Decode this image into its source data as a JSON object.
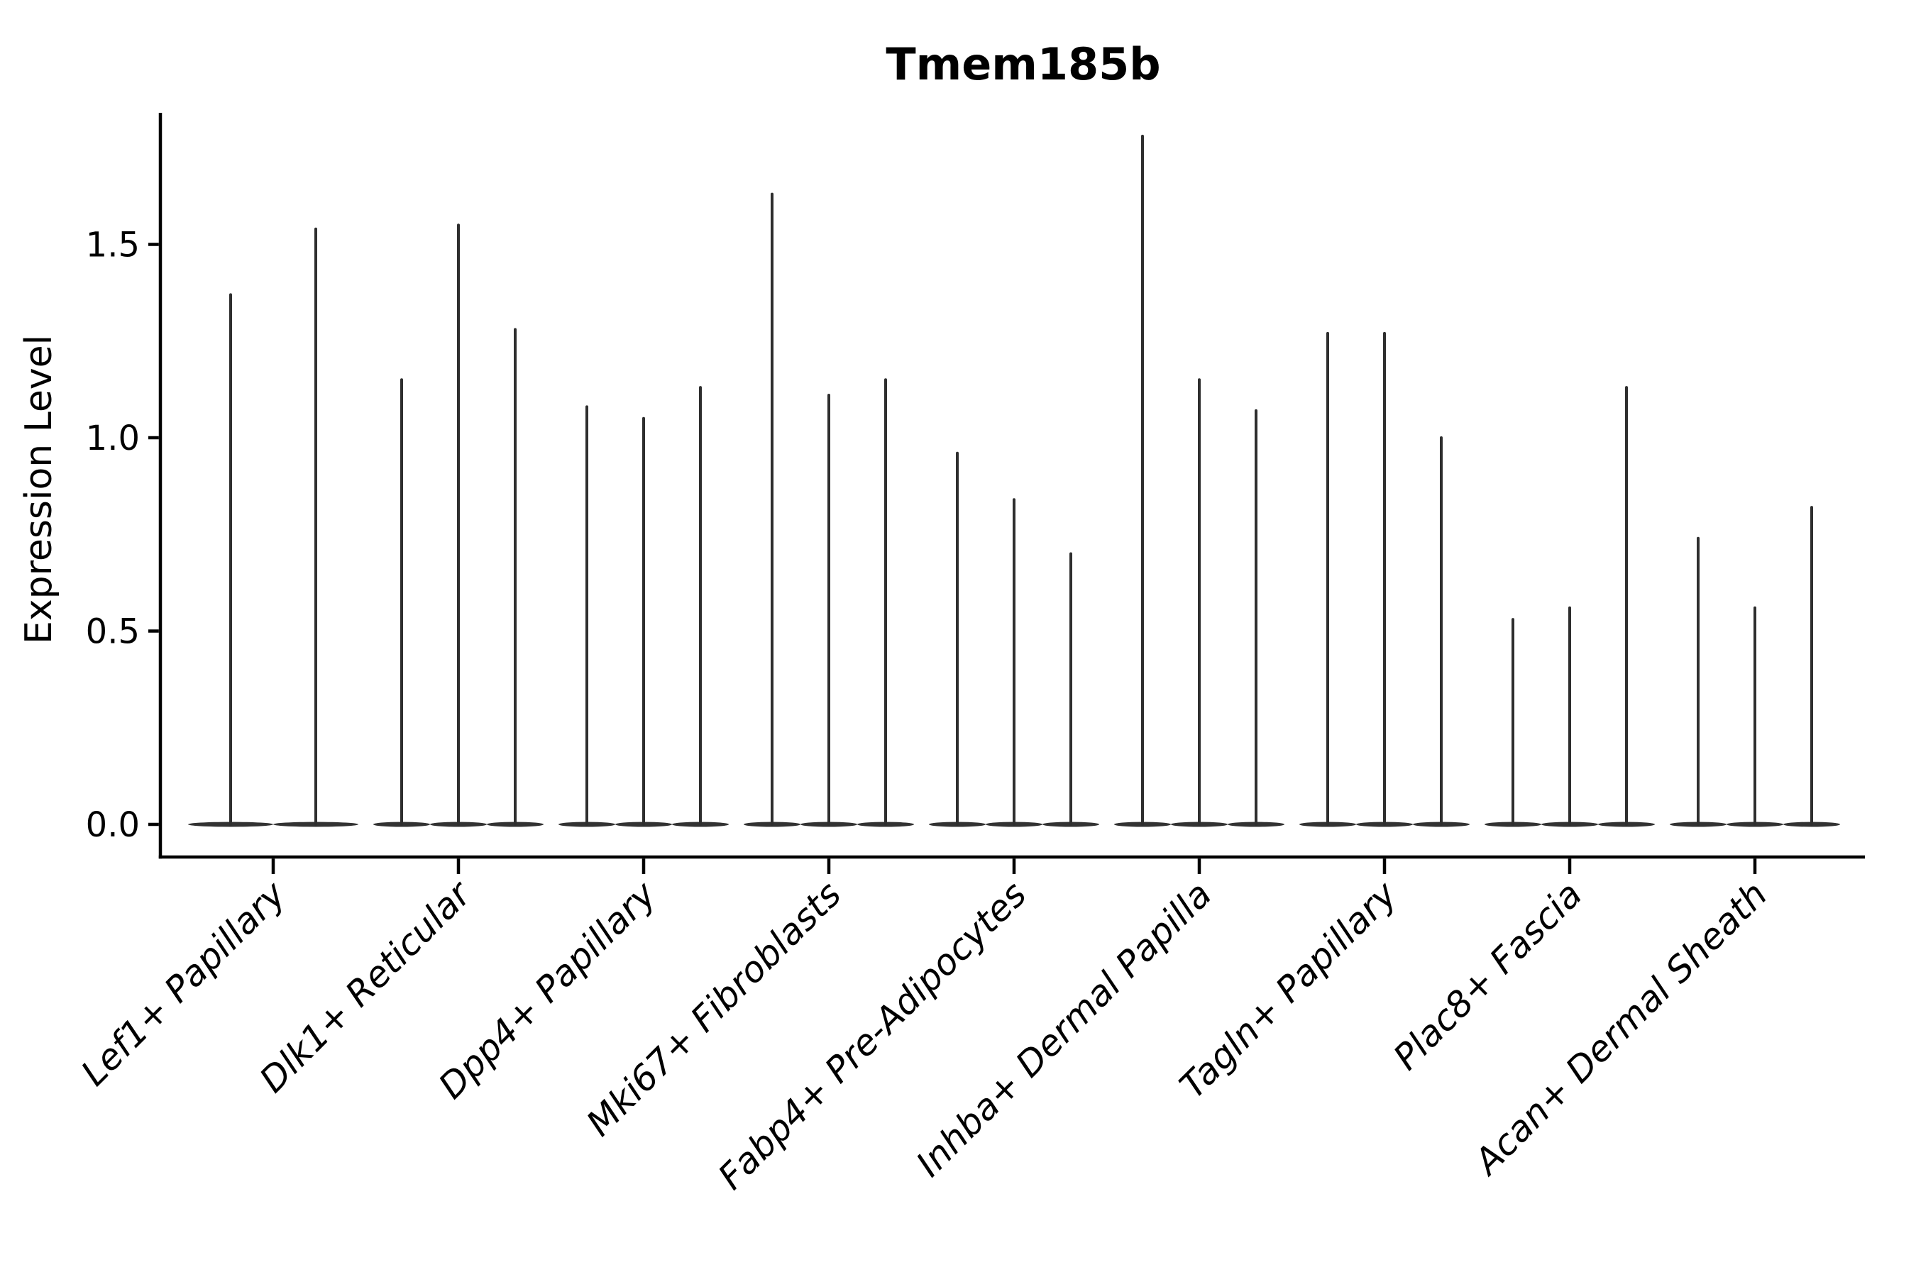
{
  "chart": {
    "title": "Tmem185b",
    "ylabel": "Expression Level"
  },
  "chart_data": {
    "type": "violin",
    "title": "Tmem185b",
    "xlabel": "",
    "ylabel": "Expression Level",
    "ylim": [
      -0.085,
      1.84
    ],
    "yticks": [
      0.0,
      0.5,
      1.0,
      1.5
    ],
    "ytick_labels": [
      "0.0",
      "0.5",
      "1.0",
      "1.5"
    ],
    "grid": false,
    "legend": "none",
    "categories": [
      "Lef1+ Papillary",
      "Dlk1+ Reticular",
      "Dpp4+ Papillary",
      "Mki67+ Fibroblasts",
      "Fabp4+ Pre-Adipocytes",
      "Inhba+ Dermal Papilla",
      "Tagln+ Papillary",
      "Plac8+ Fascia",
      "Acan+ Dermal Sheath"
    ],
    "groups": [
      {
        "category": "Lef1+ Papillary",
        "violin_max_values": [
          1.37,
          1.54
        ]
      },
      {
        "category": "Dlk1+ Reticular",
        "violin_max_values": [
          1.15,
          1.55,
          1.28
        ]
      },
      {
        "category": "Dpp4+ Papillary",
        "violin_max_values": [
          1.08,
          1.05,
          1.13
        ]
      },
      {
        "category": "Mki67+ Fibroblasts",
        "violin_max_values": [
          1.63,
          1.11,
          1.15
        ]
      },
      {
        "category": "Fabp4+ Pre-Adipocytes",
        "violin_max_values": [
          0.96,
          0.84,
          0.7
        ]
      },
      {
        "category": "Inhba+ Dermal Papilla",
        "violin_max_values": [
          1.78,
          1.15,
          1.07
        ]
      },
      {
        "category": "Tagln+ Papillary",
        "violin_max_values": [
          1.27,
          1.27,
          1.0
        ]
      },
      {
        "category": "Plac8+ Fascia",
        "violin_max_values": [
          0.53,
          0.56,
          1.13
        ]
      },
      {
        "category": "Acan+ Dermal Sheath",
        "violin_max_values": [
          0.74,
          0.56,
          0.82
        ]
      }
    ],
    "violin_baseline_value": 0.0,
    "colors": {
      "background": "#ffffff",
      "axis": "#000000",
      "text": "#000000",
      "violin_spike": "#2e2e2e",
      "violin_base": "#323232"
    }
  }
}
